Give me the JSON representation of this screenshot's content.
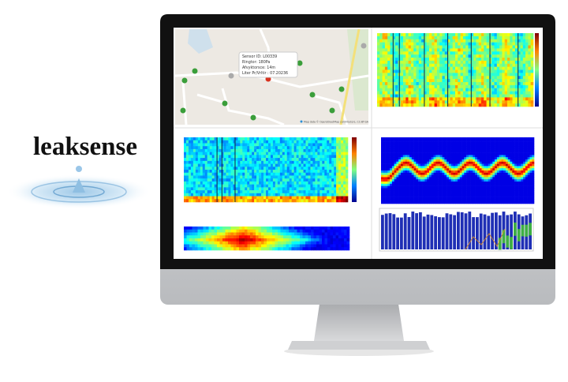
{
  "logo": {
    "text": "leaksense"
  },
  "map": {
    "tooltip": [
      "Sensor ID: L00339",
      "Ringtor: 180Pa",
      "Afvyktorsce: 14m",
      "Liter Pr/Vrltir : 07.20236"
    ],
    "attribution": "Map data © OpenStreetMap contributors, CC-BY-SA"
  }
}
